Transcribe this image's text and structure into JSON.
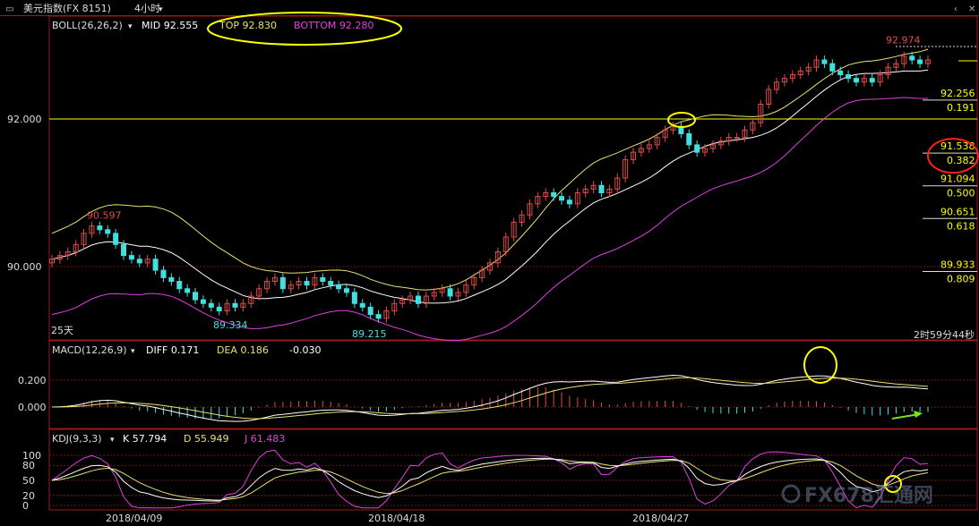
{
  "header": {
    "title": "美元指数(FX 8151)",
    "period": "4小时"
  },
  "colors": {
    "background": "#000000",
    "up": "#e04a4a",
    "down": "#40e0e0",
    "mid_line": "#ffffff",
    "upper_band": "#e8e070",
    "lower_band": "#e040e0",
    "fib_label": "#ffff00",
    "grid": "#7a1010",
    "annotation_circle_yellow": "#ffff00",
    "annotation_circle_red": "#ff2020",
    "arrow": "#80e020"
  },
  "main_panel": {
    "indicator": "BOLL(26,26,2)",
    "mid_label": "MID 92.555",
    "top_label": "TOP 92.830",
    "bottom_label": "BOTTOM 92.280",
    "period_note": "25天",
    "countdown": "2时59分44秒"
  },
  "macd_panel": {
    "indicator": "MACD(12,26,9)",
    "diff_label": "DIFF 0.171",
    "dea_label": "DEA 0.186",
    "macd_value": "-0.030",
    "y_ticks": [
      "0.200",
      "0.000"
    ]
  },
  "kdj_panel": {
    "indicator": "KDJ(9,3,3)",
    "k_label": "K 57.794",
    "d_label": "D 55.949",
    "j_label": "J 61.483",
    "y_ticks": [
      "100",
      "80",
      "50",
      "20",
      "0"
    ]
  },
  "watermark": "FX678汇通网",
  "chart_data": {
    "type": "candlestick",
    "title": "美元指数(FX 8151)",
    "timeframe": "4小时",
    "price_ticks": [
      "92.000",
      "90.000"
    ],
    "x_tick_labels": [
      "2018/04/09",
      "2018/04/18",
      "2018/04/27"
    ],
    "annotations": [
      {
        "label": "90.597",
        "value": 90.597,
        "kind": "high"
      },
      {
        "label": "89.334",
        "value": 89.334,
        "kind": "low"
      },
      {
        "label": "89.215",
        "value": 89.215,
        "kind": "low"
      },
      {
        "label": "92.974",
        "value": 92.974,
        "kind": "high"
      }
    ],
    "fibonacci_levels": [
      {
        "price": "92.256",
        "ratio": "0.191"
      },
      {
        "price": "91.538",
        "ratio": "0.382"
      },
      {
        "price": "91.094",
        "ratio": "0.500"
      },
      {
        "price": "90.651",
        "ratio": "0.618"
      },
      {
        "price": "89.933",
        "ratio": "0.809"
      }
    ],
    "horizontal_line": 92.0,
    "closes": [
      90.1,
      90.15,
      90.2,
      90.3,
      90.45,
      90.55,
      90.5,
      90.45,
      90.3,
      90.15,
      90.1,
      90.05,
      90.1,
      89.95,
      89.85,
      89.8,
      89.7,
      89.65,
      89.55,
      89.5,
      89.45,
      89.4,
      89.5,
      89.45,
      89.5,
      89.6,
      89.7,
      89.8,
      89.85,
      89.7,
      89.75,
      89.8,
      89.75,
      89.85,
      89.8,
      89.75,
      89.7,
      89.65,
      89.5,
      89.45,
      89.35,
      89.3,
      89.4,
      89.5,
      89.55,
      89.6,
      89.5,
      89.6,
      89.65,
      89.7,
      89.6,
      89.65,
      89.75,
      89.85,
      89.95,
      90.05,
      90.2,
      90.4,
      90.6,
      90.7,
      90.85,
      90.95,
      91.0,
      90.95,
      90.9,
      90.85,
      91.0,
      91.05,
      91.1,
      91.0,
      91.05,
      91.2,
      91.45,
      91.55,
      91.6,
      91.65,
      91.75,
      91.85,
      91.9,
      91.8,
      91.65,
      91.55,
      91.6,
      91.65,
      91.7,
      91.75,
      91.75,
      91.85,
      91.95,
      92.2,
      92.4,
      92.5,
      92.55,
      92.6,
      92.65,
      92.7,
      92.8,
      92.75,
      92.65,
      92.6,
      92.55,
      92.5,
      92.55,
      92.5,
      92.6,
      92.7,
      92.75,
      92.85,
      92.8,
      92.75,
      92.8
    ],
    "boll": {
      "mid": 92.555,
      "top": 92.83,
      "bottom": 92.28
    },
    "macd": {
      "diff": 0.171,
      "dea": 0.186,
      "macd": -0.03
    },
    "kdj": {
      "k": 57.794,
      "d": 55.949,
      "j": 61.483
    }
  }
}
